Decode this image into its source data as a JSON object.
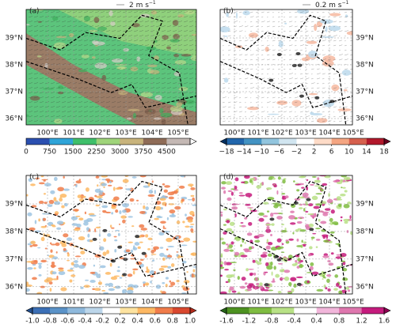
{
  "lat_ticks": [
    "39°N",
    "38°N",
    "37°N",
    "36°N"
  ],
  "lon_ticks": [
    "100°E",
    "101°E",
    "102°E",
    "103°E",
    "104°E",
    "105°E"
  ],
  "panels": [
    {
      "label": "(a)",
      "legend": "2 m s",
      "legend_unit_exp": "−1",
      "colorbar_ticks": [
        "0",
        "750",
        "1500",
        "2250",
        "3000",
        "3750",
        "4500"
      ],
      "colorbar_colors": [
        "#2b4fb0",
        "#2fa4d8",
        "#3fbf6a",
        "#9fd47a",
        "#c8b37c",
        "#8f6c57",
        "#c4b8b4",
        "#ffffff"
      ],
      "extend": "max"
    },
    {
      "label": "(b)",
      "legend": "0.2 m s",
      "legend_unit_exp": "−1",
      "colorbar_ticks": [
        "−18",
        "−14",
        "−10",
        "−6",
        "−2",
        "2",
        "6",
        "10",
        "14",
        "18"
      ],
      "colorbar_colors": [
        "#053061",
        "#2166ac",
        "#4393c3",
        "#92c5de",
        "#d1e5f0",
        "#ffffff",
        "#fddbc7",
        "#f4a582",
        "#d6604d",
        "#b2182b",
        "#67001f"
      ],
      "extend": "both"
    },
    {
      "label": "(c)",
      "colorbar_ticks": [
        "-1.0",
        "-0.8",
        "-0.6",
        "-0.4",
        "-0.2",
        "0.2",
        "0.4",
        "0.6",
        "0.8",
        "1.0"
      ],
      "colorbar_colors": [
        "#24508f",
        "#3b6fb6",
        "#5b93c8",
        "#8fb9dc",
        "#bcd6ea",
        "#ffffff",
        "#fde3a0",
        "#fdb863",
        "#f07c4a",
        "#d9482f",
        "#b22a1a"
      ],
      "extend": "both"
    },
    {
      "label": "(d)",
      "colorbar_ticks": [
        "-1.6",
        "-1.2",
        "-0.8",
        "-0.4",
        "0.4",
        "0.8",
        "1.2",
        "1.6"
      ],
      "colorbar_colors": [
        "#276419",
        "#4d9221",
        "#7fbc41",
        "#b8e186",
        "#ffffff",
        "#f1b6da",
        "#de77ae",
        "#c51b7d",
        "#8e0152"
      ],
      "extend": "both"
    }
  ]
}
